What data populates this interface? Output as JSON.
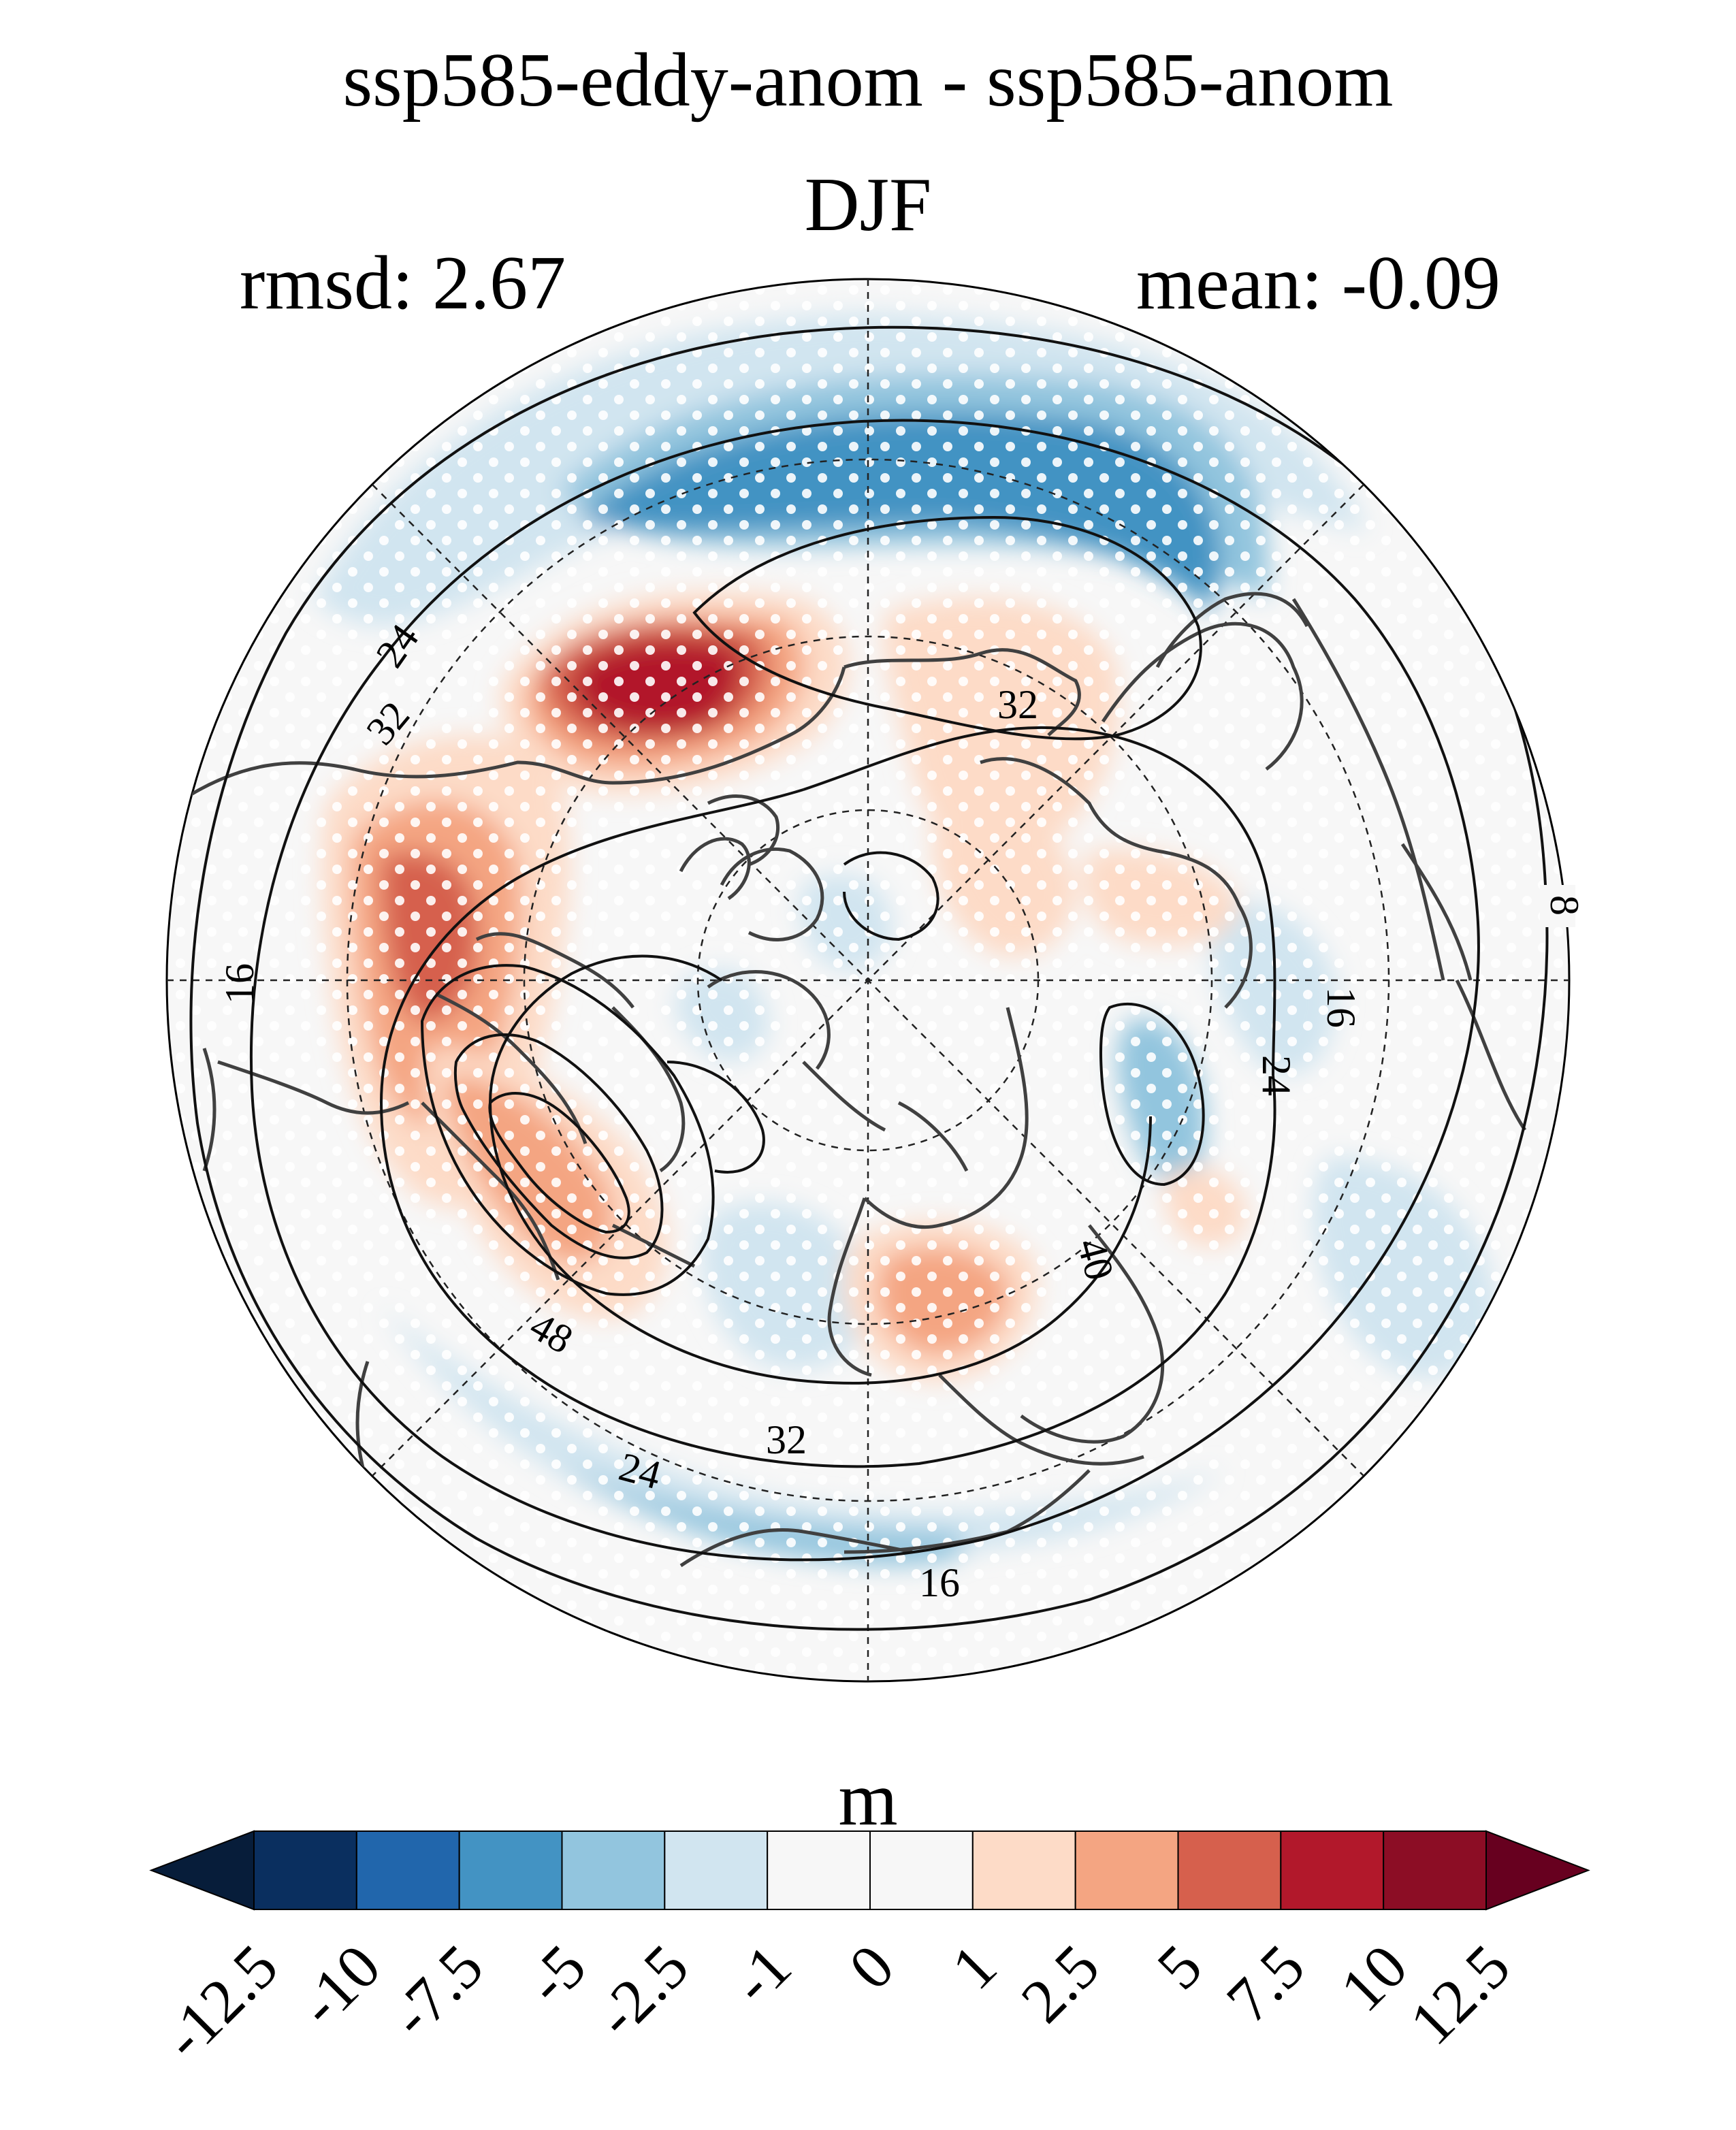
{
  "title": "ssp585-eddy-anom - ssp585-anom",
  "season": "DJF",
  "rmsd_text": "rmsd: 2.67",
  "mean_text": "mean: -0.09",
  "colorbar": {
    "unit": "m",
    "levels": [
      "-12.5",
      "-10",
      "-7.5",
      "-5",
      "-2.5",
      "-1",
      "0",
      "1",
      "2.5",
      "5",
      "7.5",
      "10",
      "12.5"
    ],
    "colors": [
      "#0a2f5f",
      "#2166ac",
      "#4393c3",
      "#92c5de",
      "#d1e5f0",
      "#f7f7f7",
      "#f7f7f7",
      "#fddbc7",
      "#f4a582",
      "#d6604d",
      "#b2182b",
      "#8c0d25"
    ],
    "extend_low_color": "#071d3a",
    "extend_high_color": "#67001f"
  },
  "map": {
    "projection": "north-polar-stereographic",
    "contour_labels": [
      "8",
      "16",
      "16",
      "16",
      "24",
      "24",
      "24",
      "32",
      "32",
      "32",
      "40",
      "48"
    ]
  }
}
